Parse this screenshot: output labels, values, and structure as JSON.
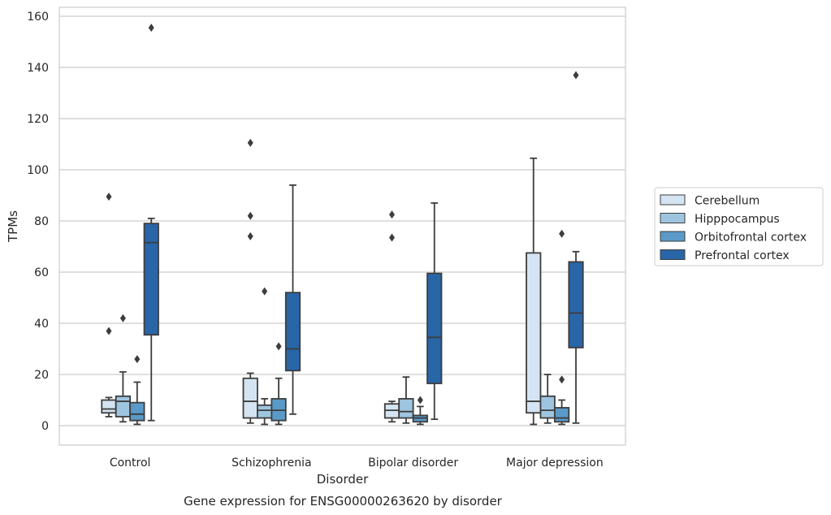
{
  "chart_data": {
    "type": "box",
    "title": "",
    "caption": "Gene expression for ENSG00000263620 by disorder",
    "xlabel": "Disorder",
    "ylabel": "TPMs",
    "ylim": [
      -7.5,
      163.5
    ],
    "yticks": [
      0,
      20,
      40,
      60,
      80,
      100,
      120,
      140,
      160
    ],
    "grid": "horizontal",
    "legend_position": "right",
    "categories": [
      "Control",
      "Schizophrenia",
      "Bipolar disorder",
      "Major depression"
    ],
    "series": [
      {
        "name": "Cerebellum",
        "color": "#d5e4f2",
        "boxes": [
          {
            "whisker_low": 3.5,
            "q1": 5.0,
            "median": 6.5,
            "q3": 10.0,
            "whisker_high": 11.0,
            "outliers": [
              37.0,
              89.5
            ]
          },
          {
            "whisker_low": 1.0,
            "q1": 3.0,
            "median": 9.5,
            "q3": 18.5,
            "whisker_high": 20.5,
            "outliers": [
              74.0,
              82.0,
              110.5
            ]
          },
          {
            "whisker_low": 1.5,
            "q1": 3.0,
            "median": 6.0,
            "q3": 8.5,
            "whisker_high": 9.5,
            "outliers": [
              73.5,
              82.5
            ]
          },
          {
            "whisker_low": 0.5,
            "q1": 5.0,
            "median": 9.5,
            "q3": 67.5,
            "whisker_high": 104.5,
            "outliers": []
          }
        ]
      },
      {
        "name": "Hipppocampus",
        "color": "#9ec5df",
        "boxes": [
          {
            "whisker_low": 1.5,
            "q1": 3.5,
            "median": 9.5,
            "q3": 11.5,
            "whisker_high": 21.0,
            "outliers": [
              42.0
            ]
          },
          {
            "whisker_low": 0.5,
            "q1": 3.0,
            "median": 6.0,
            "q3": 8.0,
            "whisker_high": 10.5,
            "outliers": [
              52.5
            ]
          },
          {
            "whisker_low": 1.0,
            "q1": 3.0,
            "median": 5.5,
            "q3": 10.5,
            "whisker_high": 19.0,
            "outliers": []
          },
          {
            "whisker_low": 1.0,
            "q1": 3.0,
            "median": 6.0,
            "q3": 11.5,
            "whisker_high": 20.0,
            "outliers": []
          }
        ]
      },
      {
        "name": "Orbitofrontal cortex",
        "color": "#5a9ac8",
        "boxes": [
          {
            "whisker_low": 0.5,
            "q1": 2.0,
            "median": 4.5,
            "q3": 9.0,
            "whisker_high": 17.0,
            "outliers": [
              26.0
            ]
          },
          {
            "whisker_low": 0.5,
            "q1": 2.0,
            "median": 6.0,
            "q3": 10.5,
            "whisker_high": 18.5,
            "outliers": [
              31.0
            ]
          },
          {
            "whisker_low": 0.5,
            "q1": 1.5,
            "median": 3.0,
            "q3": 4.0,
            "whisker_high": 7.5,
            "outliers": [
              10.0
            ]
          },
          {
            "whisker_low": 0.5,
            "q1": 1.5,
            "median": 3.0,
            "q3": 7.0,
            "whisker_high": 10.0,
            "outliers": [
              18.0,
              75.0
            ]
          }
        ]
      },
      {
        "name": "Prefrontal cortex",
        "color": "#2866a8",
        "boxes": [
          {
            "whisker_low": 2.0,
            "q1": 35.5,
            "median": 71.5,
            "q3": 79.0,
            "whisker_high": 81.0,
            "outliers": [
              155.5
            ]
          },
          {
            "whisker_low": 4.5,
            "q1": 21.5,
            "median": 30.0,
            "q3": 52.0,
            "whisker_high": 94.0,
            "outliers": []
          },
          {
            "whisker_low": 2.5,
            "q1": 16.5,
            "median": 34.5,
            "q3": 59.5,
            "whisker_high": 87.0,
            "outliers": []
          },
          {
            "whisker_low": 1.0,
            "q1": 30.5,
            "median": 44.0,
            "q3": 64.0,
            "whisker_high": 68.0,
            "outliers": [
              137.0
            ]
          }
        ]
      }
    ]
  }
}
